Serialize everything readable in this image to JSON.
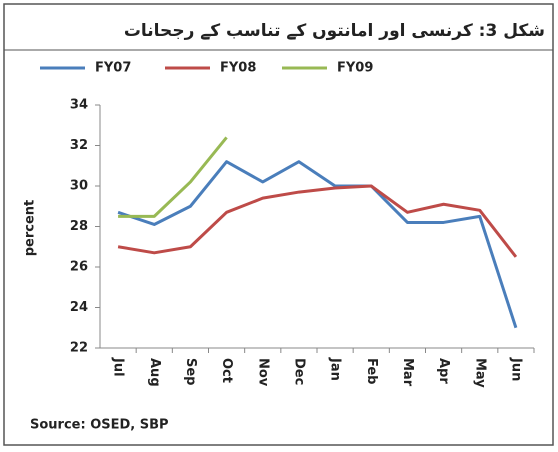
{
  "chart_data": {
    "type": "line",
    "title": "شکل 3: کرنسی اور امانتوں کے تناسب کے رجحانات",
    "y_label": "percent",
    "source": "Source: OSED, SBP",
    "categories": [
      "Jul",
      "Aug",
      "Sep",
      "Oct",
      "Nov",
      "Dec",
      "Jan",
      "Feb",
      "Mar",
      "Apr",
      "May",
      "Jun"
    ],
    "series": [
      {
        "name": "FY07",
        "color": "#4a7ebb",
        "values": [
          28.7,
          28.1,
          29.0,
          31.2,
          30.2,
          31.2,
          30.0,
          30.0,
          28.2,
          28.2,
          28.5,
          23.0
        ]
      },
      {
        "name": "FY08",
        "color": "#be4b48",
        "values": [
          27.0,
          26.7,
          27.0,
          28.7,
          29.4,
          29.7,
          29.9,
          30.0,
          28.7,
          29.1,
          28.8,
          26.5
        ]
      },
      {
        "name": "FY09",
        "color": "#98b954",
        "values": [
          28.5,
          28.5,
          30.2,
          32.4,
          null,
          null,
          null,
          null,
          null,
          null,
          null,
          null
        ]
      }
    ],
    "ylim": [
      22,
      34
    ],
    "yticks": [
      22,
      24,
      26,
      28,
      30,
      32,
      34
    ],
    "grid": false
  }
}
